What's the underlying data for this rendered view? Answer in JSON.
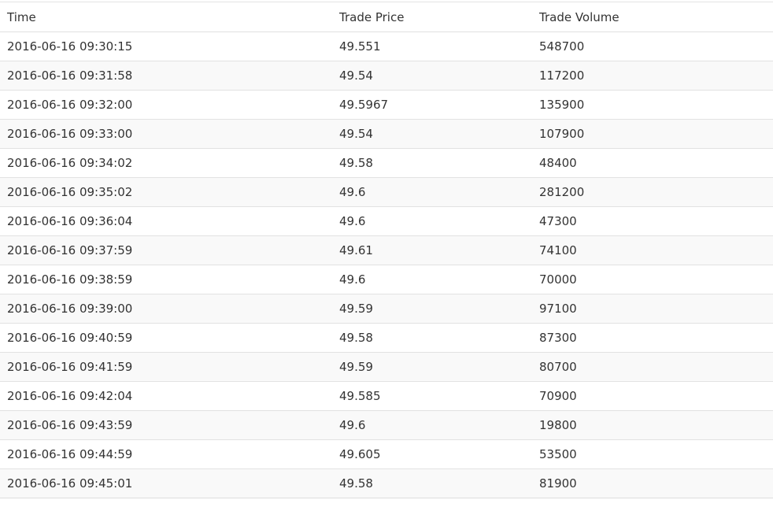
{
  "table": {
    "headers": [
      "Time",
      "Trade Price",
      "Trade Volume"
    ],
    "rows": [
      [
        "2016-06-16 09:30:15",
        "49.551",
        "548700"
      ],
      [
        "2016-06-16 09:31:58",
        "49.54",
        "117200"
      ],
      [
        "2016-06-16 09:32:00",
        "49.5967",
        "135900"
      ],
      [
        "2016-06-16 09:33:00",
        "49.54",
        "107900"
      ],
      [
        "2016-06-16 09:34:02",
        "49.58",
        "48400"
      ],
      [
        "2016-06-16 09:35:02",
        "49.6",
        "281200"
      ],
      [
        "2016-06-16 09:36:04",
        "49.6",
        "47300"
      ],
      [
        "2016-06-16 09:37:59",
        "49.61",
        "74100"
      ],
      [
        "2016-06-16 09:38:59",
        "49.6",
        "70000"
      ],
      [
        "2016-06-16 09:39:00",
        "49.59",
        "97100"
      ],
      [
        "2016-06-16 09:40:59",
        "49.58",
        "87300"
      ],
      [
        "2016-06-16 09:41:59",
        "49.59",
        "80700"
      ],
      [
        "2016-06-16 09:42:04",
        "49.585",
        "70900"
      ],
      [
        "2016-06-16 09:43:59",
        "49.6",
        "19800"
      ],
      [
        "2016-06-16 09:44:59",
        "49.605",
        "53500"
      ],
      [
        "2016-06-16 09:45:01",
        "49.58",
        "81900"
      ]
    ]
  }
}
